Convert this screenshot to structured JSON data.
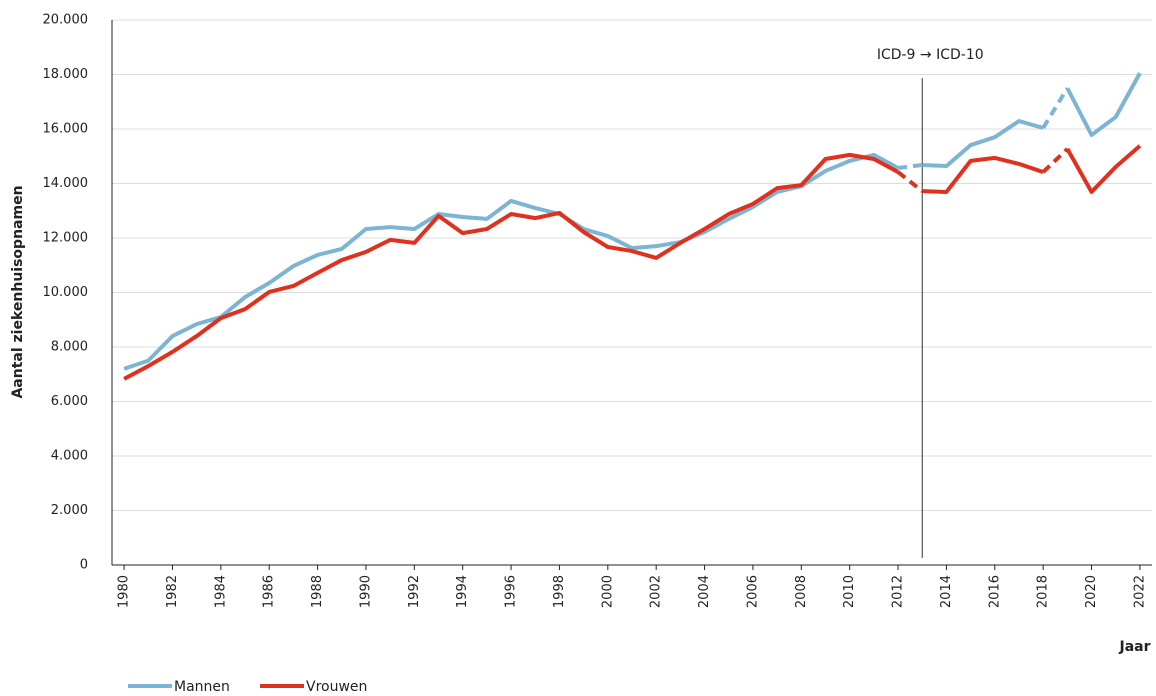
{
  "chart_data": {
    "type": "line",
    "y_label": "Aantal ziekenhuisopnamen",
    "x_label": "Jaar",
    "x": [
      1980,
      1981,
      1982,
      1983,
      1984,
      1985,
      1986,
      1987,
      1988,
      1989,
      1990,
      1991,
      1992,
      1993,
      1994,
      1995,
      1996,
      1997,
      1998,
      1999,
      2000,
      2001,
      2002,
      2003,
      2004,
      2005,
      2006,
      2007,
      2008,
      2009,
      2010,
      2011,
      2012,
      2013,
      2014,
      2015,
      2016,
      2017,
      2018,
      2019,
      2020,
      2021,
      2022
    ],
    "series": [
      {
        "name": "Mannen",
        "color": "#7cb4d4",
        "values": [
          7200,
          7500,
          8400,
          8840,
          9100,
          9830,
          10350,
          10970,
          11380,
          11600,
          12330,
          12400,
          12330,
          12880,
          12770,
          12700,
          13360,
          13100,
          12880,
          12330,
          12070,
          11630,
          11700,
          11850,
          12220,
          12700,
          13140,
          13690,
          13900,
          14460,
          14830,
          15050,
          14570,
          14680,
          14640,
          15410,
          15700,
          16290,
          16040,
          17500,
          15780,
          16440,
          18050
        ]
      },
      {
        "name": "Vrouwen",
        "color": "#e0301e",
        "values": [
          6830,
          7300,
          7820,
          8400,
          9060,
          9390,
          10020,
          10240,
          10720,
          11190,
          11490,
          11930,
          11820,
          12810,
          12180,
          12330,
          12880,
          12730,
          12920,
          12220,
          11670,
          11520,
          11270,
          11820,
          12330,
          12880,
          13250,
          13830,
          13940,
          14900,
          15050,
          14900,
          14420,
          13720,
          13690,
          14830,
          14940,
          14720,
          14420,
          15270,
          13690,
          14610,
          15380
        ]
      }
    ],
    "dashed_intervals": [
      [
        2012,
        2013
      ],
      [
        2018,
        2019
      ]
    ],
    "annotation": {
      "text": "ICD-9 → ICD-10",
      "x": 2013
    },
    "xlim": [
      1979.5,
      2022.5
    ],
    "xticks": [
      1980,
      1982,
      1984,
      1986,
      1988,
      1990,
      1992,
      1994,
      1996,
      1998,
      2000,
      2002,
      2004,
      2006,
      2008,
      2010,
      2012,
      2014,
      2016,
      2018,
      2020,
      2022
    ],
    "ylim": [
      0,
      20000
    ],
    "yticks": [
      0,
      {
        "value": 2000,
        "label": "2.000"
      },
      {
        "value": 4000,
        "label": "4.000"
      },
      {
        "value": 6000,
        "label": "6.000"
      },
      {
        "value": 8000,
        "label": "8.000"
      },
      {
        "value": 10000,
        "label": "10.000"
      },
      {
        "value": 12000,
        "label": "12.000"
      },
      {
        "value": 14000,
        "label": "14.000"
      },
      {
        "value": 16000,
        "label": "16.000"
      },
      {
        "value": 18000,
        "label": "18.000"
      },
      {
        "value": 20000,
        "label": "20.000"
      }
    ],
    "grid": true,
    "legend": "bottom-left"
  }
}
